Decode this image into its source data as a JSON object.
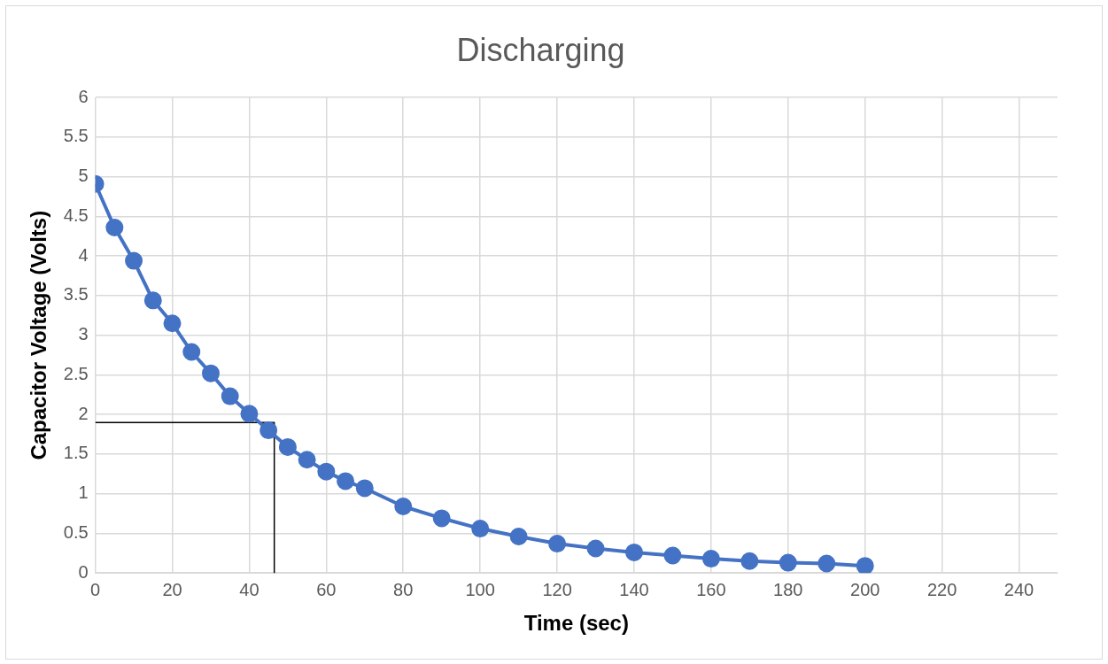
{
  "chart_data": {
    "type": "line",
    "title": "Discharging",
    "xlabel": "Time (sec)",
    "ylabel": "Capacitor Voltage (Volts)",
    "xlim": [
      0,
      250
    ],
    "xticks": [
      0,
      20,
      40,
      60,
      80,
      100,
      120,
      140,
      160,
      180,
      200,
      220,
      240
    ],
    "ylim": [
      0,
      6
    ],
    "yticks": [
      0,
      0.5,
      1,
      1.5,
      2,
      2.5,
      3,
      3.5,
      4,
      4.5,
      5,
      5.5,
      6
    ],
    "grid": true,
    "legend": false,
    "marker": "circle",
    "line_style": "solid",
    "series": [
      {
        "color": "#4472c4",
        "x": [
          0,
          5,
          10,
          15,
          20,
          25,
          30,
          35,
          40,
          45,
          50,
          55,
          60,
          65,
          70,
          80,
          90,
          100,
          110,
          120,
          130,
          140,
          150,
          160,
          170,
          180,
          190,
          200
        ],
        "values": [
          4.91,
          4.36,
          3.94,
          3.44,
          3.15,
          2.79,
          2.52,
          2.23,
          2.01,
          1.8,
          1.59,
          1.43,
          1.28,
          1.16,
          1.07,
          0.84,
          0.69,
          0.56,
          0.46,
          0.37,
          0.31,
          0.26,
          0.22,
          0.18,
          0.15,
          0.13,
          0.12,
          0.09
        ]
      },
      {
        "type": "line",
        "color": "#000000",
        "marker": "none",
        "x": [
          0,
          46.5,
          46.5
        ],
        "values": [
          1.9,
          1.9,
          0
        ]
      }
    ]
  }
}
